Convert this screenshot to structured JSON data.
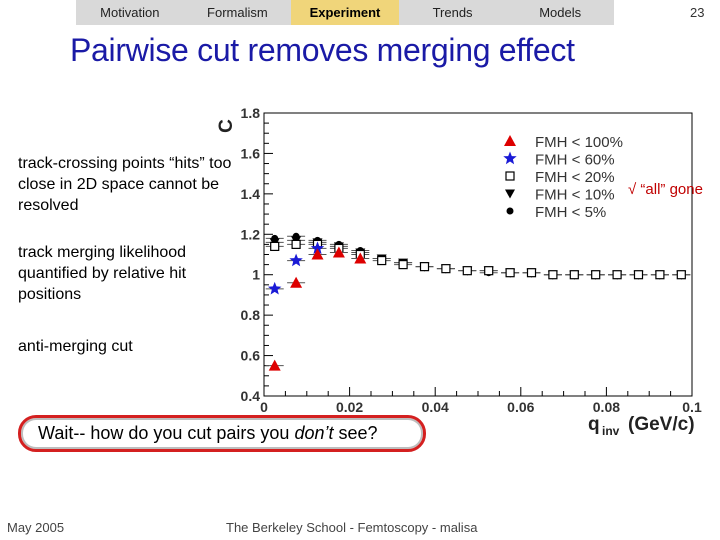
{
  "nav": {
    "items": [
      "Motivation",
      "Formalism",
      "Experiment",
      "Trends",
      "Models"
    ],
    "active": "Experiment"
  },
  "page_number": "23",
  "slide_title": "Pairwise cut removes merging effect",
  "bullets": [
    "track-crossing points “hits” too close in 2D space cannot be resolved",
    "track merging likelihood quantified by relative hit positions",
    "anti-merging cut"
  ],
  "callout": {
    "before": "Wait-- how do you cut pairs you ",
    "emphasis": "don’t",
    "after": " see?"
  },
  "check_note": "√ “all” gone",
  "footer": {
    "date": "May 2005",
    "credit": "The Berkeley School - Femtoscopy - malisa"
  },
  "colors": {
    "title": "#1a1aa6",
    "active_tab": "#f0d57a",
    "navbar": "#d9d9d9",
    "series_red": "#dd0000",
    "series_blue": "#1a1ad6",
    "series_black": "#000000",
    "callout_border": "#d42020"
  },
  "chart_data": {
    "type": "scatter",
    "ylabel": "C",
    "xlabel": "q",
    "xlabel_sub": "inv",
    "xlabel_units": "(GeV/c)",
    "xlim": [
      0,
      0.1
    ],
    "ylim": [
      0.4,
      1.8
    ],
    "x_ticks": [
      "0",
      "0.02",
      "0.04",
      "0.06",
      "0.08",
      "0.1"
    ],
    "x_tick_values": [
      0,
      0.02,
      0.04,
      0.06,
      0.08,
      0.1
    ],
    "y_ticks": [
      "0.4",
      "0.6",
      "0.8",
      "1",
      "1.2",
      "1.4",
      "1.6",
      "1.8"
    ],
    "y_tick_values": [
      0.4,
      0.6,
      0.8,
      1.0,
      1.2,
      1.4,
      1.6,
      1.8
    ],
    "grid": false,
    "legend_position": "top-right",
    "series": [
      {
        "name": "FMH < 100%",
        "marker": "triangle-up",
        "color": "#dd0000",
        "x": [
          0.0025,
          0.0075,
          0.0125,
          0.0175,
          0.0225
        ],
        "y": [
          0.55,
          0.96,
          1.1,
          1.11,
          1.08
        ]
      },
      {
        "name": "FMH < 60%",
        "marker": "star",
        "color": "#1a1ad6",
        "x": [
          0.0025,
          0.0075,
          0.0125
        ],
        "y": [
          0.93,
          1.07,
          1.13
        ]
      },
      {
        "name": "FMH < 20%",
        "marker": "open-square",
        "color": "#000000",
        "x": [
          0.0025,
          0.0075,
          0.0125,
          0.0175,
          0.0225,
          0.0275,
          0.0325,
          0.0375,
          0.0425,
          0.0475,
          0.0525,
          0.0575,
          0.0625,
          0.0675,
          0.0725,
          0.0775,
          0.0825,
          0.0875,
          0.0925,
          0.0975
        ],
        "y": [
          1.14,
          1.15,
          1.15,
          1.13,
          1.1,
          1.07,
          1.05,
          1.04,
          1.03,
          1.02,
          1.02,
          1.01,
          1.01,
          1.0,
          1.0,
          1.0,
          1.0,
          1.0,
          1.0,
          1.0
        ]
      },
      {
        "name": "FMH < 10%",
        "marker": "triangle-down",
        "color": "#000000",
        "x": [
          0.0025,
          0.0075,
          0.0125,
          0.0175,
          0.0225,
          0.0275,
          0.0325,
          0.0375,
          0.0425,
          0.0475,
          0.0525,
          0.0575,
          0.0625,
          0.0675,
          0.0725,
          0.0775,
          0.0825,
          0.0875,
          0.0925,
          0.0975
        ],
        "y": [
          1.16,
          1.17,
          1.16,
          1.14,
          1.11,
          1.08,
          1.06,
          1.04,
          1.03,
          1.02,
          1.02,
          1.01,
          1.01,
          1.0,
          1.0,
          1.0,
          1.0,
          1.0,
          1.0,
          1.0
        ]
      },
      {
        "name": "FMH < 5%",
        "marker": "circle",
        "color": "#000000",
        "x": [
          0.0025,
          0.0075,
          0.0125,
          0.0175,
          0.0225,
          0.0275,
          0.0325,
          0.0375,
          0.0425,
          0.0475,
          0.0525,
          0.0575,
          0.0625,
          0.0675,
          0.0725,
          0.0775,
          0.0825,
          0.0875,
          0.0925,
          0.0975
        ],
        "y": [
          1.18,
          1.19,
          1.17,
          1.15,
          1.12,
          1.08,
          1.06,
          1.04,
          1.03,
          1.02,
          1.01,
          1.01,
          1.01,
          1.0,
          1.0,
          1.0,
          1.0,
          1.0,
          1.0,
          1.0
        ]
      }
    ]
  }
}
